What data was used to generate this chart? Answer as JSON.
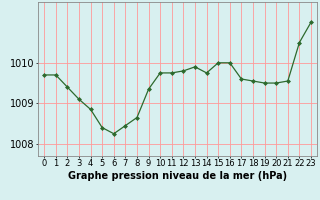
{
  "x": [
    0,
    1,
    2,
    3,
    4,
    5,
    6,
    7,
    8,
    9,
    10,
    11,
    12,
    13,
    14,
    15,
    16,
    17,
    18,
    19,
    20,
    21,
    22,
    23
  ],
  "y": [
    1009.7,
    1009.7,
    1009.4,
    1009.1,
    1008.85,
    1008.4,
    1008.25,
    1008.45,
    1008.65,
    1009.35,
    1009.75,
    1009.75,
    1009.8,
    1009.9,
    1009.75,
    1010.0,
    1010.0,
    1009.6,
    1009.55,
    1009.5,
    1009.5,
    1009.55,
    1010.5,
    1011.0
  ],
  "line_color": "#2d6a2d",
  "marker": "D",
  "marker_size": 2,
  "bg_color": "#d8f0f0",
  "grid_color": "#ff9999",
  "xlabel": "Graphe pression niveau de la mer (hPa)",
  "xlabel_fontsize": 7,
  "ytick_labels": [
    "1008",
    "1009",
    "1010"
  ],
  "ytick_values": [
    1008,
    1009,
    1010
  ],
  "ylim": [
    1007.7,
    1011.5
  ],
  "xlim": [
    -0.5,
    23.5
  ],
  "xtick_labels": [
    "0",
    "1",
    "2",
    "3",
    "4",
    "5",
    "6",
    "7",
    "8",
    "9",
    "10",
    "11",
    "12",
    "13",
    "14",
    "15",
    "16",
    "17",
    "18",
    "19",
    "20",
    "21",
    "22",
    "23"
  ],
  "tick_fontsize": 6
}
